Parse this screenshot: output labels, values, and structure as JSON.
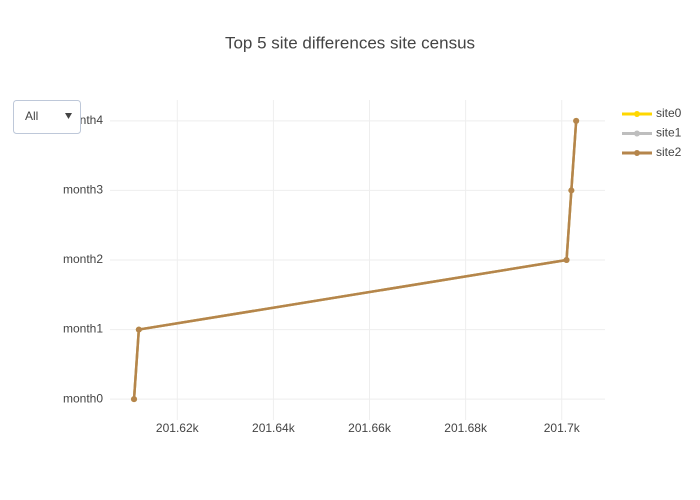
{
  "chart_data": {
    "type": "line",
    "title": "Top 5 site differences site census",
    "y_categories": [
      "month0",
      "month1",
      "month2",
      "month3",
      "month4"
    ],
    "series": [
      {
        "name": "site0",
        "color": "#ffd700",
        "x": [
          201611,
          201612,
          201701,
          201702,
          201703
        ],
        "values": [
          "month0",
          "month1",
          "month2",
          "month3",
          "month4"
        ]
      },
      {
        "name": "site1",
        "color": "#bebebe",
        "x": [
          201611,
          201612,
          201701,
          201702,
          201703
        ],
        "values": [
          "month0",
          "month1",
          "month2",
          "month3",
          "month4"
        ]
      },
      {
        "name": "site2",
        "color": "#b5854b",
        "x": [
          201611,
          201612,
          201701,
          201702,
          201703
        ],
        "values": [
          "month0",
          "month1",
          "month2",
          "month3",
          "month4"
        ]
      }
    ],
    "xlim": [
      201606,
      201709
    ],
    "xticks": [
      {
        "value": 201620,
        "label": "201.62k"
      },
      {
        "value": 201640,
        "label": "201.64k"
      },
      {
        "value": 201660,
        "label": "201.66k"
      },
      {
        "value": 201680,
        "label": "201.68k"
      },
      {
        "value": 201700,
        "label": "201.7k"
      }
    ],
    "grid": true,
    "legend": "top-right"
  },
  "dropdown": {
    "selected": "All"
  }
}
